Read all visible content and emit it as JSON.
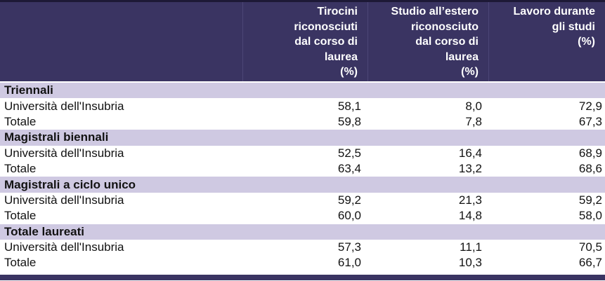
{
  "colors": {
    "header_background": "#3a3462",
    "section_band": "#cfc9e2",
    "header_text": "#ffffff",
    "body_text": "#121212",
    "top_border": "#1d1936"
  },
  "table": {
    "columns": {
      "corner": "",
      "tirocini": "Tirocini\nriconosciuti\ndal corso di\nlaurea\n(%)",
      "studio_estero": "Studio all’estero\nriconosciuto\ndal corso di\nlaurea\n(%)",
      "lavoro": "Lavoro durante\ngli studi\n(%)"
    },
    "sections": [
      {
        "title": "Triennali",
        "rows": [
          {
            "label": "Università dell'Insubria",
            "values": [
              "58,1",
              "8,0",
              "72,9"
            ]
          },
          {
            "label": "Totale",
            "values": [
              "59,8",
              "7,8",
              "67,3"
            ]
          }
        ]
      },
      {
        "title": "Magistrali biennali",
        "rows": [
          {
            "label": "Università dell'Insubria",
            "values": [
              "52,5",
              "16,4",
              "68,9"
            ]
          },
          {
            "label": "Totale",
            "values": [
              "63,4",
              "13,2",
              "68,6"
            ]
          }
        ]
      },
      {
        "title": "Magistrali a ciclo unico",
        "rows": [
          {
            "label": "Università dell'Insubria",
            "values": [
              "59,2",
              "21,3",
              "59,2"
            ]
          },
          {
            "label": "Totale",
            "values": [
              "60,0",
              "14,8",
              "58,0"
            ]
          }
        ]
      },
      {
        "title": "Totale laureati",
        "rows": [
          {
            "label": "Università dell'Insubria",
            "values": [
              "57,3",
              "11,1",
              "70,5"
            ]
          },
          {
            "label": "Totale",
            "values": [
              "61,0",
              "10,3",
              "66,7"
            ]
          }
        ]
      }
    ]
  },
  "chart_data": {
    "type": "table",
    "title": "",
    "columns": [
      "",
      "Tirocini riconosciuti dal corso di laurea (%)",
      "Studio all’estero riconosciuto dal corso di laurea (%)",
      "Lavoro durante gli studi (%)"
    ],
    "sections": [
      {
        "group": "Triennali",
        "rows": [
          {
            "label": "Università dell'Insubria",
            "values": [
              58.1,
              8.0,
              72.9
            ]
          },
          {
            "label": "Totale",
            "values": [
              59.8,
              7.8,
              67.3
            ]
          }
        ]
      },
      {
        "group": "Magistrali biennali",
        "rows": [
          {
            "label": "Università dell'Insubria",
            "values": [
              52.5,
              16.4,
              68.9
            ]
          },
          {
            "label": "Totale",
            "values": [
              63.4,
              13.2,
              68.6
            ]
          }
        ]
      },
      {
        "group": "Magistrali a ciclo unico",
        "rows": [
          {
            "label": "Università dell'Insubria",
            "values": [
              59.2,
              21.3,
              59.2
            ]
          },
          {
            "label": "Totale",
            "values": [
              60.0,
              14.8,
              58.0
            ]
          }
        ]
      },
      {
        "group": "Totale laureati",
        "rows": [
          {
            "label": "Università dell'Insubria",
            "values": [
              57.3,
              11.1,
              70.5
            ]
          },
          {
            "label": "Totale",
            "values": [
              61.0,
              10.3,
              66.7
            ]
          }
        ]
      }
    ],
    "layout": {
      "decimal_separator": ",",
      "numeric_alignment": "right",
      "grouped_rows": true
    }
  }
}
